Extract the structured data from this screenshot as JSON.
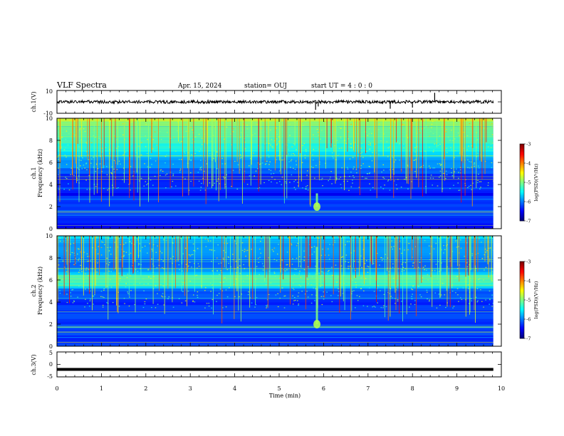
{
  "header": {
    "title": "VLF Spectra",
    "date": "Apr. 15, 2024",
    "station": "station= OUJ",
    "start": "start  UT =   4 : 0  : 0"
  },
  "colors": {
    "background": "#ffffff",
    "trace": "#000000",
    "spectrogram_low": "#00007f",
    "spectrogram_high": "#ff0000"
  },
  "chart_data": [
    {
      "type": "line",
      "name": "ch1-waveform",
      "ylabel": "ch.1(V)",
      "ylim": [
        -10,
        10
      ],
      "yticks": [
        10,
        -10
      ],
      "xlim": [
        0,
        10
      ],
      "baseline": 0,
      "spikes": [
        {
          "x": 5.82,
          "y": -7
        },
        {
          "x": 5.88,
          "y": -4
        },
        {
          "x": 7.5,
          "y": -6
        },
        {
          "x": 8.0,
          "y": -5
        },
        {
          "x": 8.5,
          "y": 8
        },
        {
          "x": 3.4,
          "y": 2
        }
      ]
    },
    {
      "type": "heatmap",
      "name": "ch1-spectrogram",
      "ylabel": "ch.1",
      "ylabel2": "Frequency (kHz)",
      "xlim": [
        0,
        10
      ],
      "data_xmax": 9.82,
      "ylim": [
        0,
        10
      ],
      "yticks": [
        "0",
        "2",
        "4",
        "6",
        "8",
        "10"
      ],
      "features": {
        "hiss_center_khz": 7.5,
        "burst_time_min": 5.85,
        "burst_freq_khz": 2.0
      },
      "colorbar": {
        "label": "log(PSD)(V²/Hz)",
        "ticks": [
          "-3",
          "-4",
          "-5",
          "-6",
          "-7"
        ],
        "range": [
          -7,
          -3
        ]
      }
    },
    {
      "type": "heatmap",
      "name": "ch2-spectrogram",
      "ylabel": "ch.2",
      "ylabel2": "Frequency (kHz)",
      "xlim": [
        0,
        10
      ],
      "data_xmax": 9.82,
      "ylim": [
        0,
        10
      ],
      "yticks": [
        "0",
        "2",
        "4",
        "6",
        "8",
        "10"
      ],
      "features": {
        "band_center_khz": 6.0,
        "burst_time_min": 5.85,
        "burst_freq_khz": 2.0
      },
      "colorbar": {
        "label": "log(PSD)(V²/Hz)",
        "ticks": [
          "-3",
          "-4",
          "-5",
          "-6",
          "-7"
        ],
        "range": [
          -7,
          -3
        ]
      }
    },
    {
      "type": "line",
      "name": "ch3-waveform",
      "ylabel": "ch.3(V)",
      "ylim": [
        -5,
        5
      ],
      "yticks": [
        "5",
        "0",
        "-5"
      ],
      "xlim": [
        0,
        10
      ],
      "baseline": -2
    }
  ],
  "x_axis": {
    "label": "Time  (min)",
    "ticks": [
      "0",
      "1",
      "2",
      "3",
      "4",
      "5",
      "6",
      "7",
      "8",
      "9",
      "10"
    ]
  }
}
